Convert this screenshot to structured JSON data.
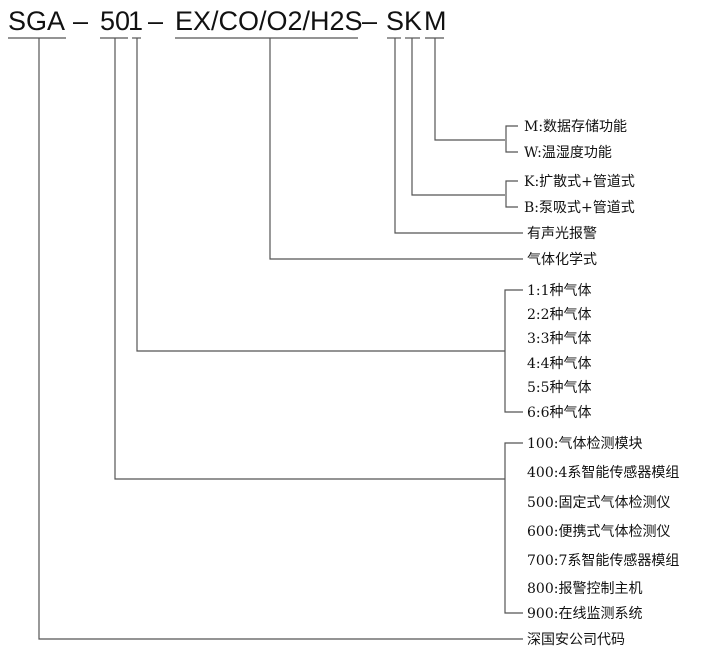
{
  "code": {
    "prefix": "SGA",
    "series": "50",
    "gas_count": "1",
    "gases": "EX/CO/O2/H2S",
    "alarm": "S",
    "sampling": "K",
    "function": "M",
    "dash": "–"
  },
  "function_options": [
    "M:数据存储功能",
    "W:温湿度功能"
  ],
  "sampling_options": [
    "K:扩散式+管道式",
    "B:泵吸式+管道式"
  ],
  "alarm_label": "有声光报警",
  "gas_formula_label": "气体化学式",
  "gas_count_options": [
    "1:1种气体",
    "2:2种气体",
    "3:3种气体",
    "4:4种气体",
    "5:5种气体",
    "6:6种气体"
  ],
  "series_options": [
    "100:气体检测模块",
    "400:4系智能传感器模组",
    "500:固定式气体检测仪",
    "600:便携式气体检测仪",
    "700:7系智能传感器模组",
    "800:报警控制主机",
    "900:在线监测系统"
  ],
  "company_label": "深国安公司代码"
}
